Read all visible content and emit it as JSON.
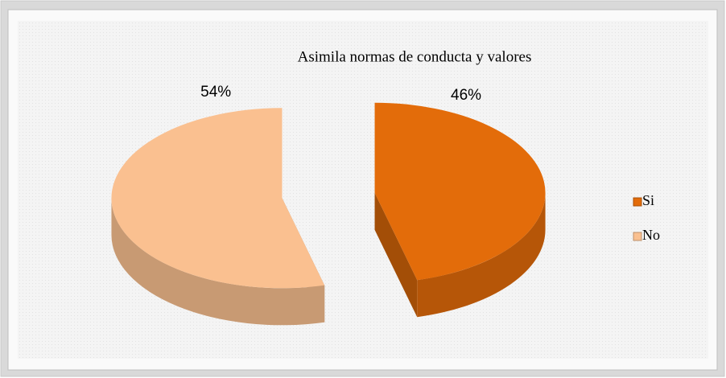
{
  "chart_data": {
    "type": "pie",
    "title": "Asimila normas de conducta y valores",
    "categories": [
      "Si",
      "No"
    ],
    "values": [
      46,
      54
    ],
    "value_labels": [
      "46%",
      "54%"
    ],
    "colors": [
      "#e36c0a",
      "#fac090"
    ],
    "legend": "right"
  }
}
